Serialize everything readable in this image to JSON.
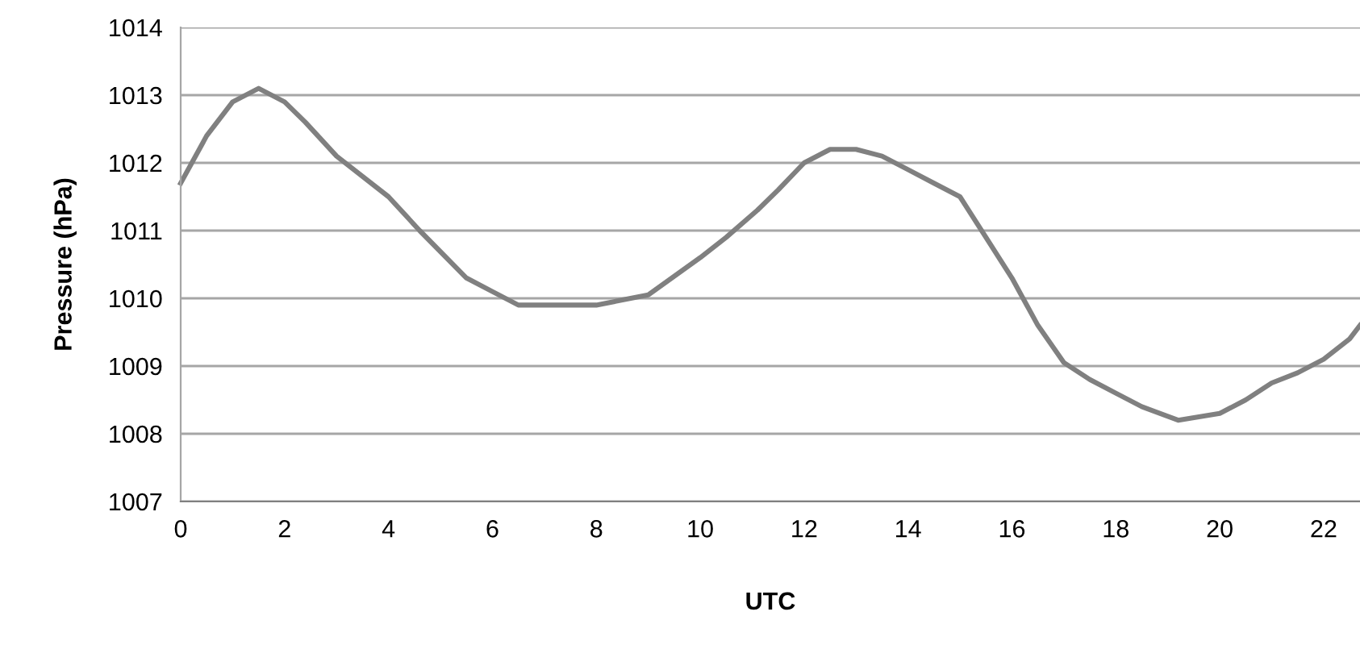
{
  "chart_data": {
    "type": "line",
    "xlabel": "UTC",
    "ylabel": "Pressure (hPa)",
    "xlim": [
      0,
      22.7
    ],
    "xticks": [
      0,
      2,
      4,
      6,
      8,
      10,
      12,
      14,
      16,
      18,
      20,
      22
    ],
    "ylim": [
      1007,
      1014
    ],
    "yticks": [
      1007,
      1008,
      1009,
      1010,
      1011,
      1012,
      1013,
      1014
    ],
    "grid": "y",
    "marker": "none",
    "line_style": "solid",
    "series": [
      {
        "color": "#808080",
        "x": [
          0,
          0.5,
          1,
          1.5,
          2,
          2.4,
          3,
          4,
          4.6,
          5.5,
          6,
          6.5,
          8,
          9,
          10,
          10.5,
          11.1,
          11.5,
          12,
          12.5,
          13,
          13.5,
          14,
          14.5,
          15,
          15.5,
          16,
          16.5,
          17,
          17.5,
          18,
          18.5,
          19.2,
          20,
          20.5,
          21,
          21.5,
          22,
          22.5,
          22.7
        ],
        "values": [
          1011.7,
          1012.4,
          1012.9,
          1013.1,
          1012.9,
          1012.6,
          1012.1,
          1011.5,
          1011.0,
          1010.3,
          1010.1,
          1009.9,
          1009.9,
          1010.05,
          1010.6,
          1010.9,
          1011.3,
          1011.6,
          1012.0,
          1012.2,
          1012.2,
          1012.1,
          1011.9,
          1011.7,
          1011.5,
          1010.9,
          1010.3,
          1009.6,
          1009.05,
          1008.8,
          1008.6,
          1008.4,
          1008.2,
          1008.3,
          1008.5,
          1008.75,
          1008.9,
          1009.1,
          1009.4,
          1009.6
        ]
      }
    ]
  }
}
